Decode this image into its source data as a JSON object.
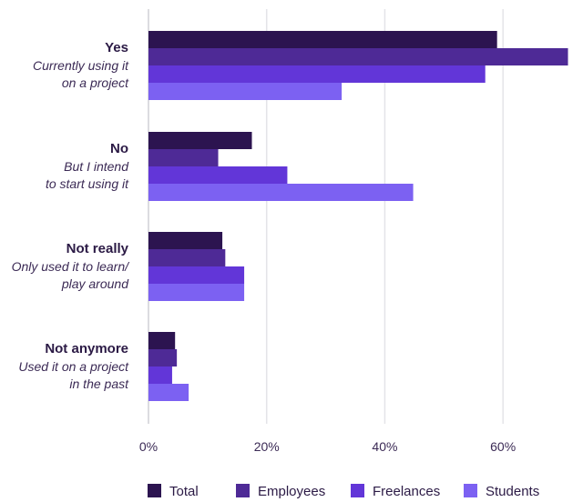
{
  "chart_data": {
    "type": "bar",
    "orientation": "horizontal",
    "categories": [
      {
        "title": "Yes",
        "subtitle_lines": [
          "Currently using it",
          "on a project"
        ]
      },
      {
        "title": "No",
        "subtitle_lines": [
          "But I intend",
          "to start using it"
        ]
      },
      {
        "title": "Not really",
        "subtitle_lines": [
          "Only used it to learn/",
          "play around"
        ]
      },
      {
        "title": "Not anymore",
        "subtitle_lines": [
          "Used it on a project",
          "in the past"
        ]
      }
    ],
    "series": [
      {
        "name": "Total",
        "color": "#2c1450",
        "values": [
          59,
          17.5,
          12.5,
          4.5
        ]
      },
      {
        "name": "Employees",
        "color": "#4e2a96",
        "values": [
          71,
          11.8,
          13,
          4.8
        ]
      },
      {
        "name": "Freelances",
        "color": "#6236d8",
        "values": [
          57,
          23.5,
          16.2,
          4
        ]
      },
      {
        "name": "Students",
        "color": "#7c61f2",
        "values": [
          32.7,
          44.8,
          16.2,
          6.8
        ]
      }
    ],
    "xlim": [
      0,
      72
    ],
    "xticks": [
      0,
      20,
      40,
      60
    ],
    "xtick_labels": [
      "0%",
      "20%",
      "40%",
      "60%"
    ],
    "grid": true,
    "legend_position": "bottom"
  }
}
